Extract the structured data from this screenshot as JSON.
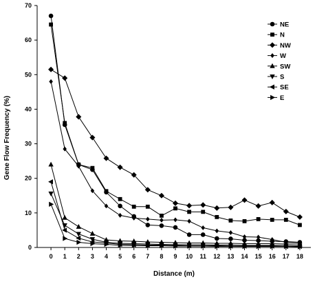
{
  "chart_data": {
    "type": "line",
    "title": "",
    "xlabel": "Distance (m)",
    "ylabel": "Gene Flow Frequency (%)",
    "x": [
      0,
      1,
      2,
      3,
      4,
      5,
      6,
      7,
      8,
      9,
      10,
      11,
      12,
      13,
      14,
      15,
      16,
      17,
      18
    ],
    "xlim": [
      -1,
      18.8
    ],
    "ylim": [
      0,
      70
    ],
    "yticks": [
      0,
      10,
      20,
      30,
      40,
      50,
      60,
      70
    ],
    "grid": false,
    "legend_position": "top-right",
    "series": [
      {
        "name": "NE",
        "marker": "circle",
        "values": [
          67.0,
          35.5,
          24.0,
          22.5,
          16.0,
          12.0,
          9.0,
          6.5,
          6.3,
          5.8,
          3.7,
          3.7,
          2.6,
          2.5,
          2.1,
          2.0,
          1.8,
          1.7,
          1.5
        ]
      },
      {
        "name": "N",
        "marker": "square",
        "values": [
          64.5,
          36.0,
          24.0,
          23.0,
          16.3,
          14.0,
          11.8,
          11.8,
          9.2,
          11.3,
          10.3,
          10.3,
          8.8,
          7.8,
          7.6,
          8.2,
          8.0,
          8.0,
          6.5
        ]
      },
      {
        "name": "NW",
        "marker": "diamond",
        "values": [
          51.5,
          49.0,
          37.8,
          31.8,
          25.8,
          23.2,
          21.0,
          16.7,
          15.0,
          12.8,
          12.1,
          12.3,
          11.4,
          11.6,
          13.7,
          12.0,
          13.0,
          10.4,
          8.8
        ]
      },
      {
        "name": "W",
        "marker": "diamond-small",
        "values": [
          48.0,
          28.5,
          23.5,
          16.4,
          12.0,
          9.3,
          8.5,
          8.2,
          7.9,
          8.0,
          7.6,
          5.7,
          4.8,
          4.3,
          3.1,
          3.0,
          2.3,
          1.5,
          1.4
        ]
      },
      {
        "name": "SW",
        "marker": "triangle-up",
        "values": [
          24.0,
          8.6,
          6.0,
          4.0,
          2.2,
          1.9,
          1.8,
          1.6,
          1.5,
          1.4,
          1.3,
          1.3,
          1.2,
          1.2,
          1.1,
          1.1,
          1.1,
          1.0,
          1.0
        ]
      },
      {
        "name": "S",
        "marker": "triangle-down",
        "values": [
          15.6,
          6.4,
          3.9,
          2.4,
          1.5,
          1.2,
          1.1,
          1.0,
          0.9,
          0.8,
          0.8,
          0.8,
          0.7,
          0.7,
          0.6,
          0.6,
          0.6,
          0.6,
          0.5
        ]
      },
      {
        "name": "SE",
        "marker": "triangle-left",
        "values": [
          19.0,
          5.0,
          2.7,
          1.6,
          1.3,
          0.9,
          0.8,
          0.7,
          0.7,
          0.6,
          0.5,
          0.5,
          0.5,
          0.4,
          0.4,
          0.4,
          0.4,
          0.3,
          0.3
        ]
      },
      {
        "name": "E",
        "marker": "triangle-right",
        "values": [
          12.5,
          2.6,
          1.5,
          1.1,
          0.9,
          0.6,
          0.6,
          0.5,
          0.5,
          0.4,
          0.4,
          0.4,
          0.3,
          0.3,
          0.3,
          0.3,
          0.3,
          0.3,
          0.2
        ]
      }
    ]
  }
}
